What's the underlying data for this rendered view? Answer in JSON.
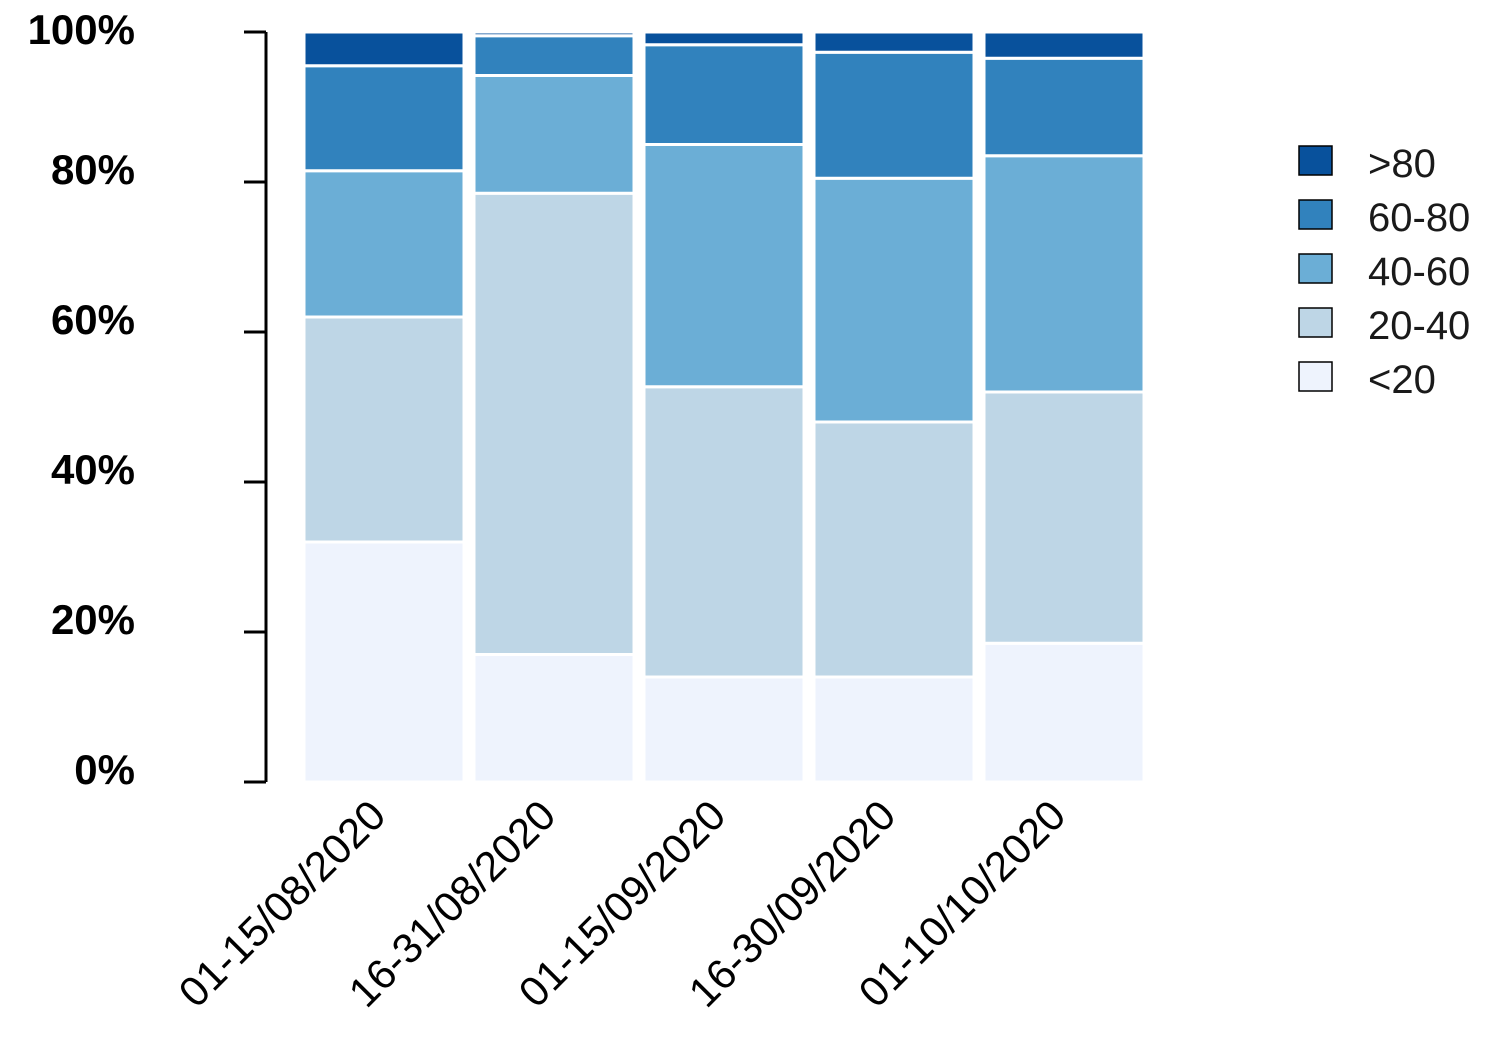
{
  "chart_data": {
    "type": "bar",
    "stacked": true,
    "normalized": true,
    "categories": [
      "01-15/08/2020",
      "16-31/08/2020",
      "01-15/09/2020",
      "16-30/09/2020",
      "01-10/10/2020"
    ],
    "series": [
      {
        "name": "<20",
        "color": "#eef3fd",
        "values": [
          32.0,
          17.0,
          14.0,
          14.0,
          18.5
        ]
      },
      {
        "name": "20-40",
        "color": "#bed6e6",
        "values": [
          30.0,
          61.5,
          38.7,
          34.0,
          33.5
        ]
      },
      {
        "name": "40-60",
        "color": "#6baed6",
        "values": [
          19.5,
          15.7,
          32.3,
          32.5,
          31.5
        ]
      },
      {
        "name": "60-80",
        "color": "#3182bd",
        "values": [
          14.0,
          5.3,
          13.3,
          16.8,
          13.0
        ]
      },
      {
        "name": ">80",
        "color": "#08519c",
        "values": [
          4.5,
          0.5,
          1.7,
          2.7,
          3.5
        ]
      }
    ],
    "legend_order": [
      ">80",
      "60-80",
      "40-60",
      "20-40",
      "<20"
    ],
    "y_ticks": [
      "0%",
      "20%",
      "40%",
      "60%",
      "80%",
      "100%"
    ],
    "ylim": [
      0,
      100
    ],
    "grid": false,
    "legend_position": "right",
    "title": "",
    "xlabel": "",
    "ylabel": ""
  }
}
